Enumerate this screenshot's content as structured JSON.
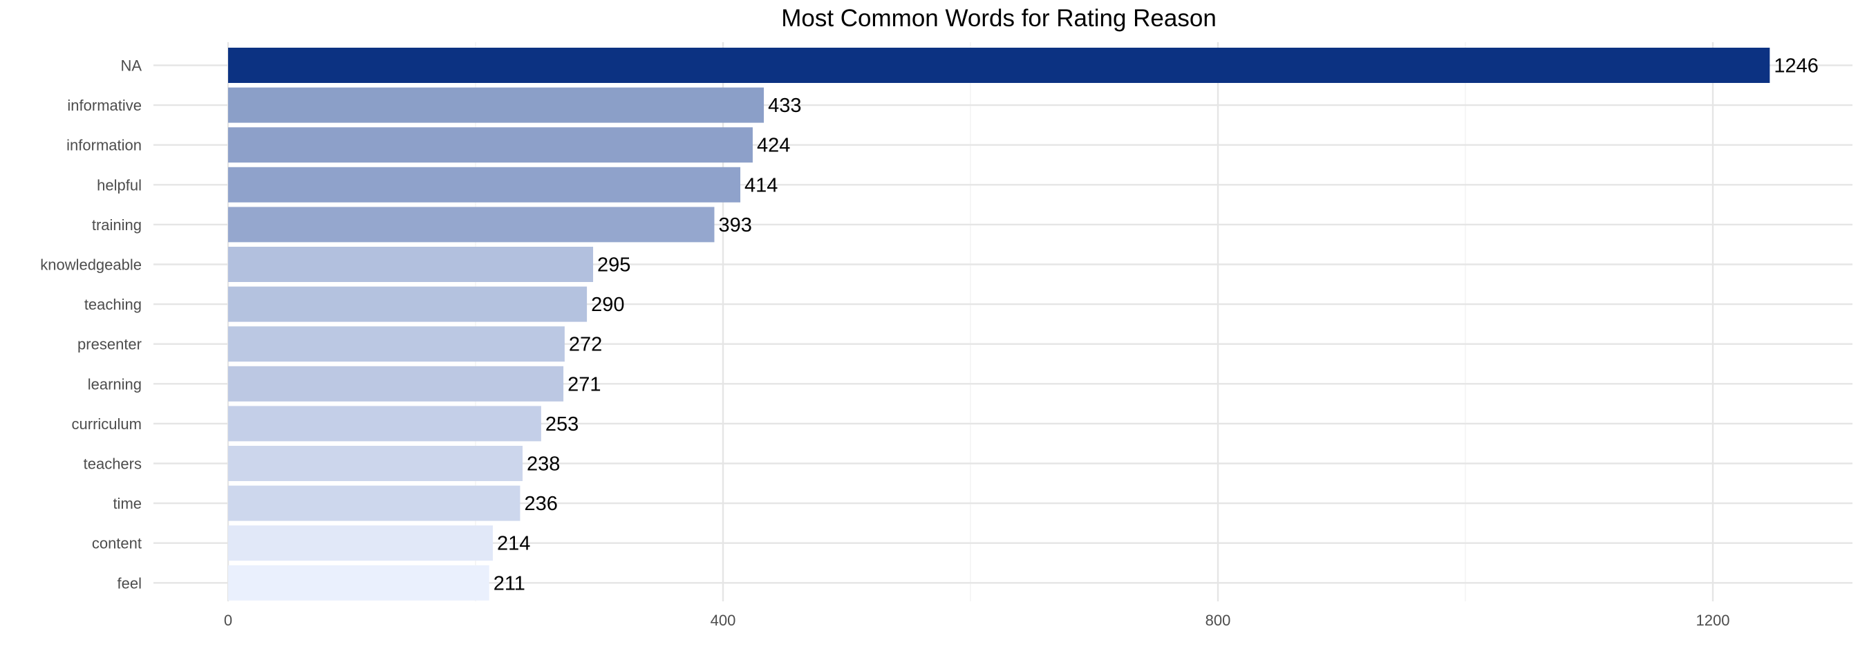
{
  "chart_data": {
    "type": "bar",
    "orientation": "horizontal",
    "title": "Most Common Words for Rating Reason",
    "xlabel": "",
    "ylabel": "",
    "categories": [
      "NA",
      "informative",
      "information",
      "helpful",
      "training",
      "knowledgeable",
      "teaching",
      "presenter",
      "learning",
      "curriculum",
      "teachers",
      "time",
      "content",
      "feel"
    ],
    "values": [
      1246,
      433,
      424,
      414,
      393,
      295,
      290,
      272,
      271,
      253,
      238,
      236,
      214,
      211
    ],
    "value_labels": [
      "1246",
      "433",
      "424",
      "414",
      "393",
      "295",
      "290",
      "272",
      "271",
      "253",
      "238",
      "236",
      "214",
      "211"
    ],
    "x_ticks": [
      {
        "value": 0,
        "label": "0"
      },
      {
        "value": 400,
        "label": "400"
      },
      {
        "value": 800,
        "label": "800"
      },
      {
        "value": 1200,
        "label": "1200"
      }
    ],
    "xlim": [
      -62,
      1308
    ],
    "grid": true,
    "legend": "none",
    "color_scale": {
      "low": "#eaf0fd",
      "high": "#0c3282"
    }
  }
}
